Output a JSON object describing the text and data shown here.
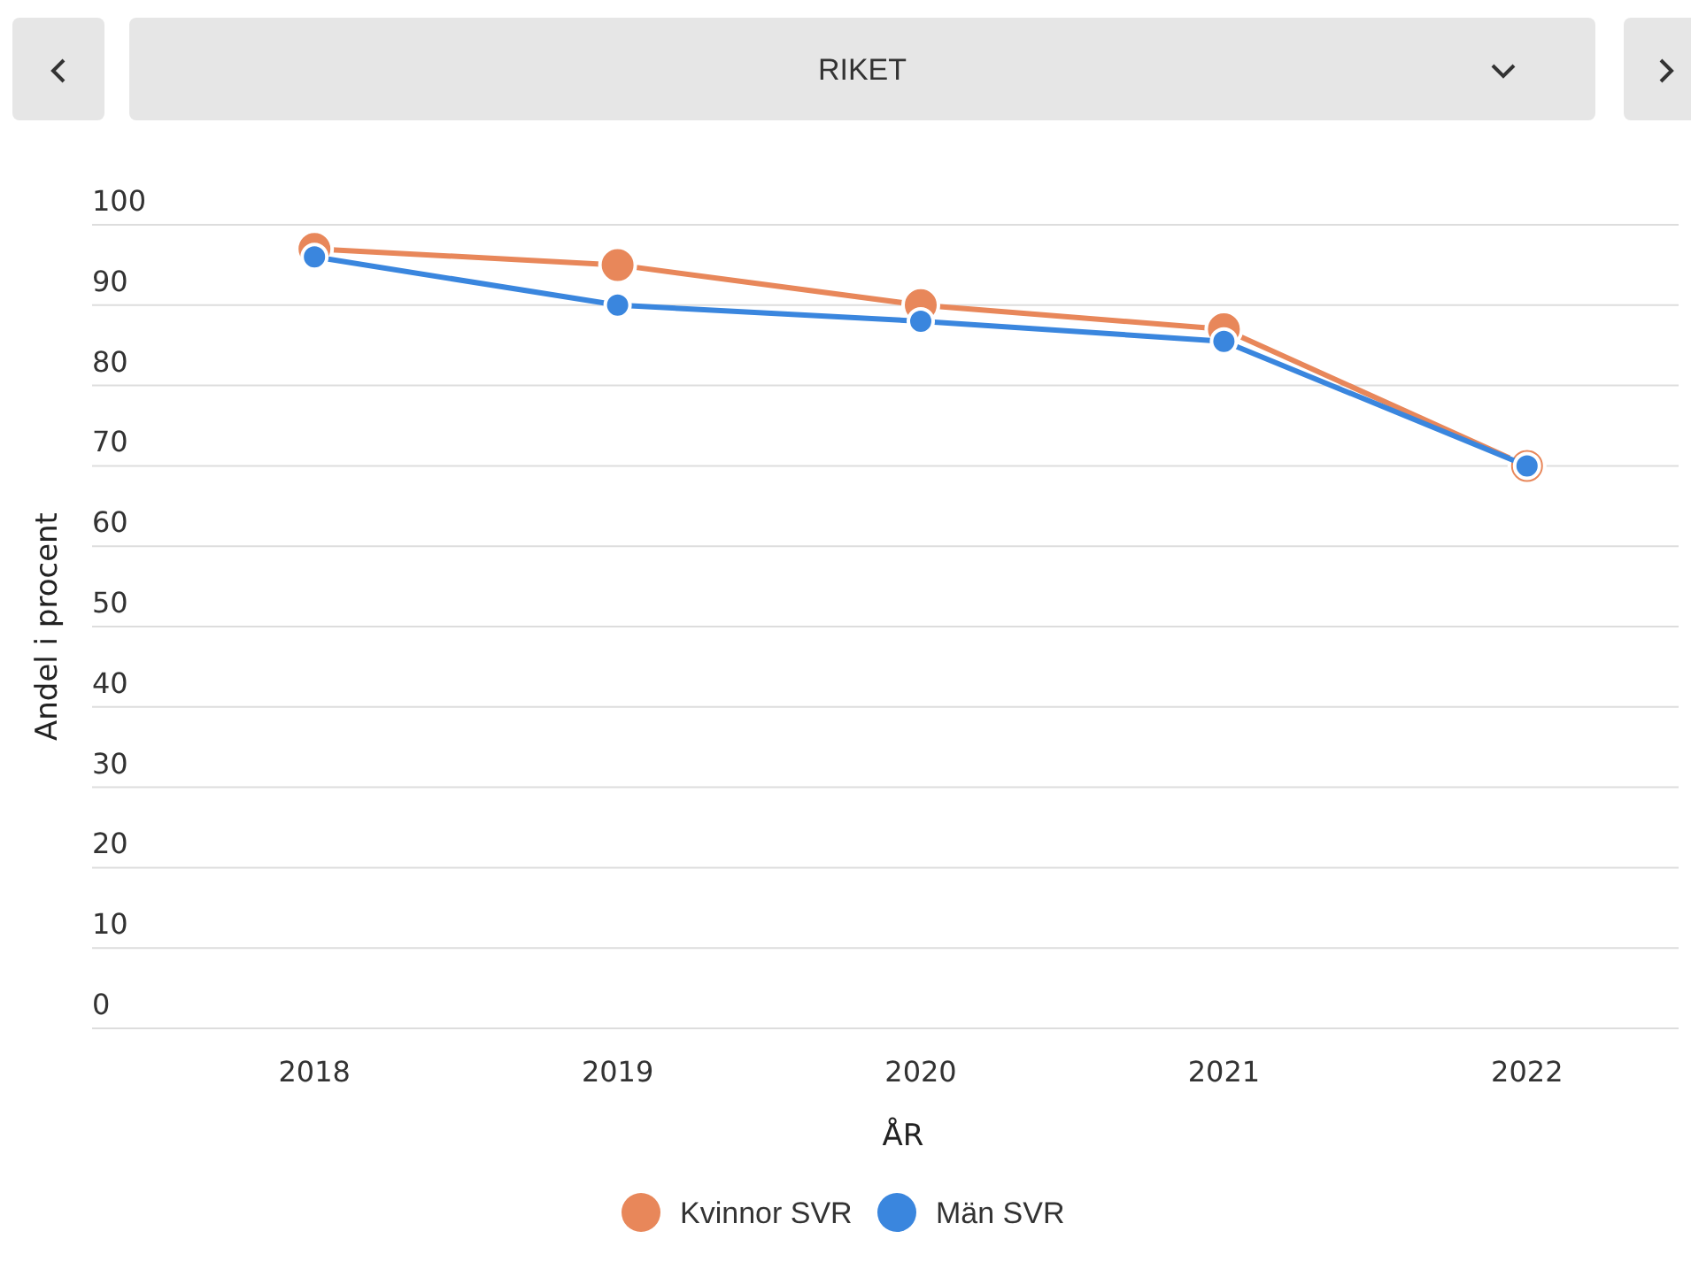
{
  "chart_data": {
    "type": "line",
    "title": "RIKET",
    "xlabel": "ÅR",
    "ylabel": "Andel i procent",
    "categories": [
      "2018",
      "2019",
      "2020",
      "2021",
      "2022"
    ],
    "series": [
      {
        "name": "Kvinnor SVR",
        "color": "#e8875a",
        "values": [
          97,
          95,
          90,
          87,
          70
        ]
      },
      {
        "name": "Män SVR",
        "color": "#3a86de",
        "values": [
          96,
          90,
          88,
          85.5,
          70
        ]
      }
    ],
    "ylim": [
      0,
      100
    ],
    "yticks": [
      0,
      10,
      20,
      30,
      40,
      50,
      60,
      70,
      80,
      90,
      100
    ],
    "grid": "y",
    "legend": "bottom",
    "marker": "circle",
    "line_style": "solid"
  }
}
